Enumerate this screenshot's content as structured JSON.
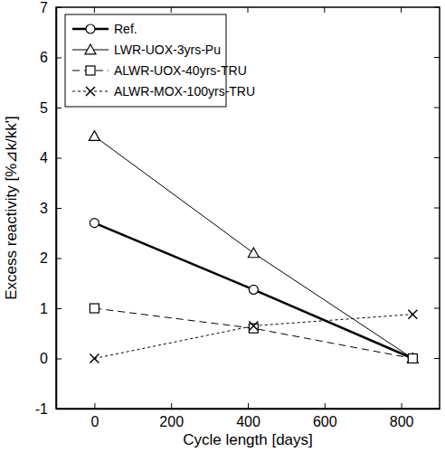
{
  "chart_data": {
    "type": "line",
    "x_label": "Cycle length [days]",
    "y_label": "Excess reactivity [%⊿k/kk']",
    "x": [
      0,
      415,
      830
    ],
    "xlim": [
      -100,
      900
    ],
    "xticks": [
      0,
      200,
      400,
      600,
      800
    ],
    "ylim": [
      -1,
      7
    ],
    "yticks": [
      -1,
      0,
      1,
      2,
      3,
      4,
      5,
      6,
      7
    ],
    "legend": "upper left",
    "series": [
      {
        "name": "Ref.",
        "color": "#000000",
        "marker": "circle",
        "line_style": "solid",
        "values": [
          2.7,
          1.37,
          0
        ]
      },
      {
        "name": "LWR-UOX-3yrs-Pu",
        "color": "#000000",
        "marker": "triangle",
        "line_style": "solid",
        "values": [
          4.43,
          2.1,
          0
        ]
      },
      {
        "name": "ALWR-UOX-40yrs-TRU",
        "color": "#000000",
        "marker": "square",
        "line_style": "dashed",
        "values": [
          1.0,
          0.6,
          0
        ]
      },
      {
        "name": "ALWR-MOX-100yrs-TRU",
        "color": "#000000",
        "marker": "x",
        "line_style": "dotted",
        "values": [
          0,
          0.65,
          0.88
        ]
      }
    ]
  }
}
